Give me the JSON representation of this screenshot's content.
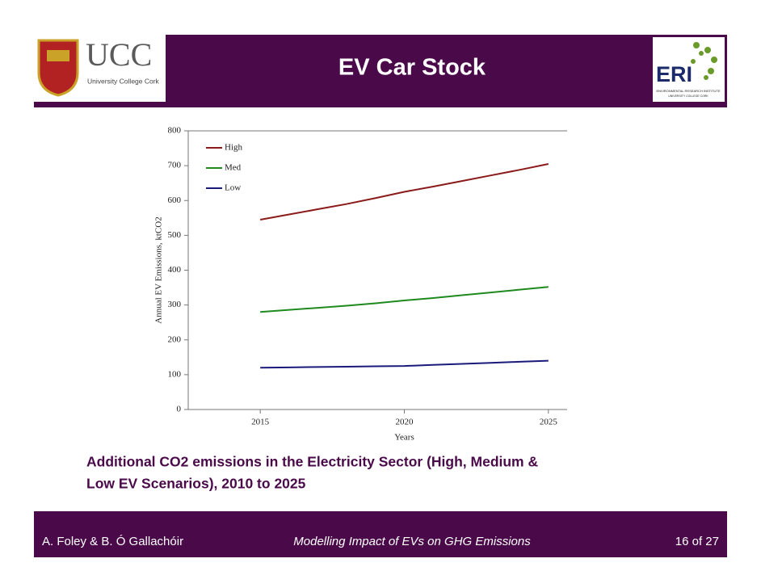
{
  "header": {
    "title": "EV Car Stock",
    "left_logo": {
      "name": "UCC",
      "subtitle": "University College Cork"
    },
    "right_logo": {
      "name": "ERI",
      "subtitle": "ENVIRONMENTAL RESEARCH INSTITUTE",
      "org": "UNIVERSITY COLLEGE CORK"
    }
  },
  "chart_data": {
    "type": "line",
    "x_label": "Years",
    "y_label": "Annual EV Emissions, ktCO2",
    "x": [
      2015,
      2016,
      2017,
      2018,
      2019,
      2020,
      2021,
      2022,
      2023,
      2024,
      2025
    ],
    "series": [
      {
        "name": "High",
        "color": "#8b1a1a",
        "values": [
          545,
          560,
          575,
          590,
          607,
          625,
          640,
          656,
          672,
          688,
          705
        ]
      },
      {
        "name": "Med",
        "color": "#1e8a1e",
        "values": [
          280,
          286,
          292,
          298,
          305,
          313,
          320,
          328,
          336,
          344,
          352
        ]
      },
      {
        "name": "Low",
        "color": "#1a1a7a",
        "values": [
          120,
          121,
          122,
          123,
          124,
          125,
          128,
          131,
          134,
          137,
          140
        ]
      }
    ],
    "xlim": [
      2012.5,
      2025.65
    ],
    "xticks": [
      2015,
      2020,
      2025
    ],
    "ylim": [
      0,
      800
    ],
    "yticks": [
      0,
      100,
      200,
      300,
      400,
      500,
      600,
      700,
      800
    ],
    "legend": "upper left"
  },
  "caption": [
    "Additional CO2 emissions in the Electricity Sector (High, Medium &",
    "Low EV Scenarios), 2010 to 2025"
  ],
  "footer": {
    "authors": "A. Foley & B. Ó Gallachóir",
    "talk": "Modelling Impact of EVs on GHG Emissions",
    "page": "16 of 27"
  }
}
